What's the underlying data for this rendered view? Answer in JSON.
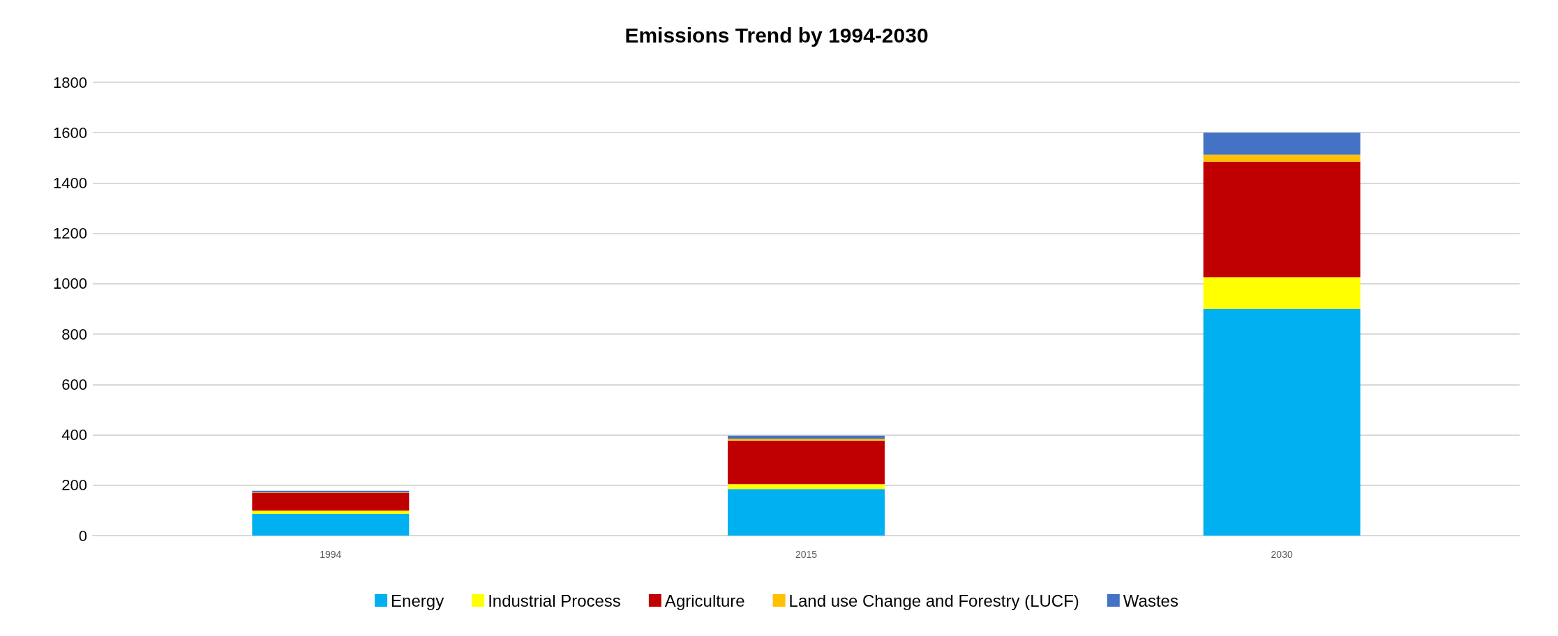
{
  "chart_data": {
    "type": "bar",
    "title": "Emissions Trend by 1994-2030",
    "categories": [
      "1994",
      "2015",
      "2030"
    ],
    "stacked": true,
    "series": [
      {
        "name": "Energy",
        "color": "#00b0f0",
        "values": [
          86,
          185,
          900
        ]
      },
      {
        "name": "Industrial Process",
        "color": "#ffff00",
        "values": [
          13,
          19,
          126
        ]
      },
      {
        "name": "Agriculture",
        "color": "#c00000",
        "values": [
          71,
          173,
          459
        ]
      },
      {
        "name": "Land use Change and Forestry (LUCF)",
        "color": "#ffc000",
        "values": [
          2,
          7,
          28
        ]
      },
      {
        "name": "Wastes",
        "color": "#4472c4",
        "values": [
          6,
          13,
          87
        ]
      }
    ],
    "ylim": [
      0,
      1800
    ],
    "yticks": [
      0,
      200,
      400,
      600,
      800,
      1000,
      1200,
      1400,
      1600,
      1800
    ],
    "grid": "y",
    "legend": "bottom"
  }
}
